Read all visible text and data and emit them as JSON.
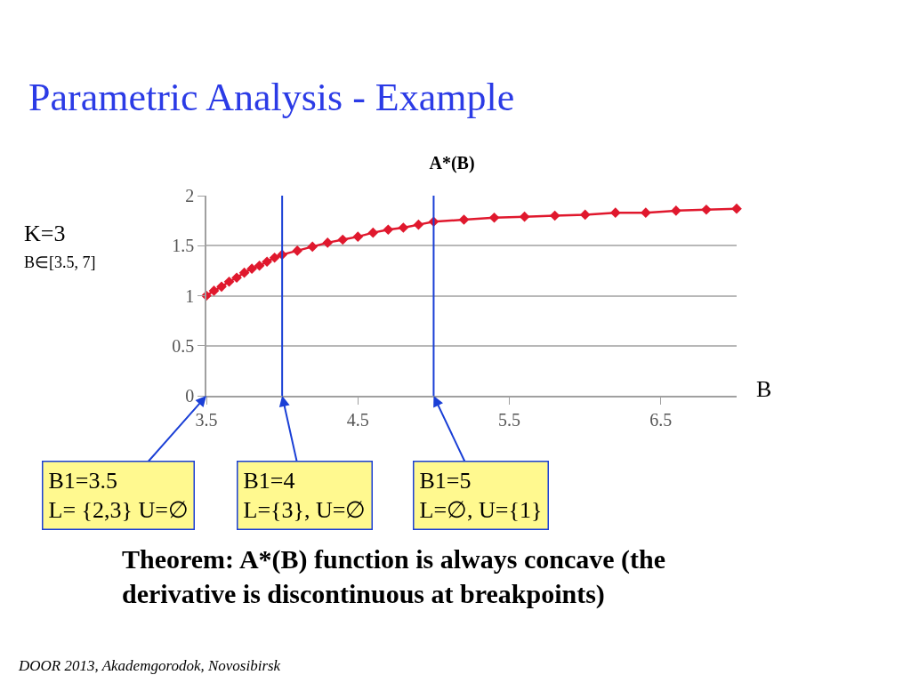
{
  "chart_data": {
    "type": "line",
    "title": "A*(B)",
    "xlabel": "B",
    "x": [
      3.5,
      3.55,
      3.6,
      3.65,
      3.7,
      3.75,
      3.8,
      3.85,
      3.9,
      3.95,
      4.0,
      4.1,
      4.2,
      4.3,
      4.4,
      4.5,
      4.6,
      4.7,
      4.8,
      4.9,
      5.0,
      5.2,
      5.4,
      5.6,
      5.8,
      6.0,
      6.2,
      6.4,
      6.6,
      6.8,
      7.0
    ],
    "series": [
      {
        "color": "#e0182d",
        "values": [
          1.0,
          1.05,
          1.09,
          1.14,
          1.18,
          1.23,
          1.27,
          1.3,
          1.34,
          1.38,
          1.41,
          1.45,
          1.49,
          1.53,
          1.56,
          1.59,
          1.63,
          1.66,
          1.68,
          1.71,
          1.74,
          1.76,
          1.78,
          1.79,
          1.8,
          1.81,
          1.83,
          1.83,
          1.85,
          1.86,
          1.87
        ]
      }
    ],
    "xlim": [
      3.5,
      7
    ],
    "xticks": [
      3.5,
      4.5,
      5.5,
      6.5
    ],
    "ylim": [
      0,
      2
    ],
    "yticks": [
      0,
      0.5,
      1,
      1.5,
      2
    ],
    "grid": "y",
    "marker": "diamond",
    "line_style": "solid",
    "ref_lines": [
      {
        "axis": "x",
        "value": 4,
        "color": "#1a3fd6"
      },
      {
        "axis": "x",
        "value": 5,
        "color": "#1a3fd6"
      }
    ],
    "annotations": [
      "Parametric Analysis - Example",
      "K=3",
      "B∈[3.5, 7]",
      "Theorem: A*(B) function is always concave (the\nderivative is discontinuous at breakpoints)",
      "DOOR 2013, Akademgorodok, Novosibirsk",
      "B1=3.5\nL= {2,3} U=∅",
      {
        "text": "B1=4\nL={3}, U=∅",
        "x": 4,
        "y": 0
      },
      {
        "text": "B1=5\nL=∅, U={1}",
        "x": 5,
        "y": 0
      }
    ]
  }
}
